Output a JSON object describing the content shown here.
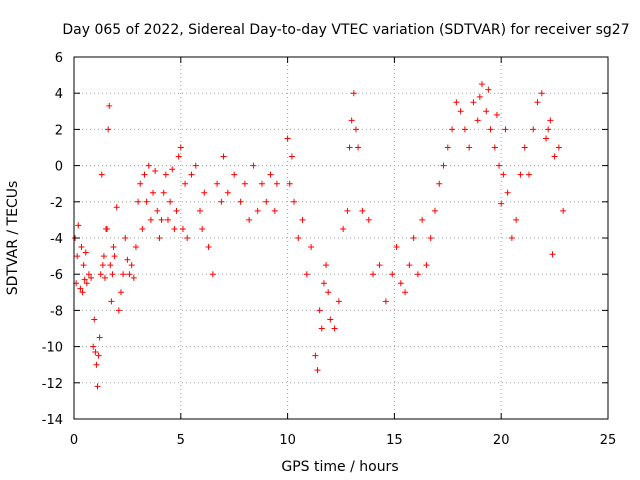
{
  "chart_data": {
    "type": "scatter",
    "title": "Day 065 of 2022, Sidereal Day-to-day VTEC variation (SDTVAR) for receiver sg27",
    "xlabel": "GPS time / hours",
    "ylabel": "SDTVAR / TECUs",
    "xlim": [
      0,
      25
    ],
    "ylim": [
      -14,
      6
    ],
    "xticks": [
      0,
      5,
      10,
      15,
      20,
      25
    ],
    "xtick_labels": [
      "0",
      "5",
      "10",
      "15",
      "20",
      "25"
    ],
    "yticks": [
      -14,
      -12,
      -10,
      -8,
      -6,
      -4,
      -2,
      0,
      2,
      4,
      6
    ],
    "ytick_labels": [
      "-14",
      "-12",
      "-10",
      "-8",
      "-6",
      "-4",
      "-2",
      "0",
      "2",
      "4",
      "6"
    ],
    "grid": true,
    "marker": "+",
    "series": [
      {
        "name": "SDTVAR",
        "color": "#ff0000",
        "x": [
          0.05,
          0.1,
          0.15,
          0.2,
          0.3,
          0.35,
          0.4,
          0.45,
          0.5,
          0.55,
          0.6,
          0.7,
          0.8,
          0.9,
          0.95,
          1.0,
          1.05,
          1.1,
          1.15,
          1.2,
          1.25,
          1.3,
          1.35,
          1.4,
          1.45,
          1.5,
          1.55,
          1.6,
          1.65,
          1.7,
          1.75,
          1.8,
          1.85,
          1.9,
          2.0,
          2.1,
          2.2,
          2.3,
          2.4,
          2.5,
          2.6,
          2.7,
          2.8,
          2.9,
          3.0,
          3.1,
          3.2,
          3.3,
          3.4,
          3.5,
          3.6,
          3.7,
          3.8,
          3.9,
          4.0,
          4.1,
          4.2,
          4.3,
          4.4,
          4.5,
          4.6,
          4.7,
          4.8,
          4.9,
          5.0,
          5.1,
          5.2,
          5.3,
          5.5,
          5.7,
          5.9,
          6.0,
          6.1,
          6.3,
          6.5,
          6.7,
          6.9,
          7.0,
          7.2,
          7.5,
          7.8,
          8.0,
          8.2,
          8.4,
          8.6,
          8.8,
          9.0,
          9.2,
          9.4,
          9.5,
          10.0,
          10.1,
          10.2,
          10.3,
          10.5,
          10.7,
          10.9,
          11.1,
          11.3,
          11.4,
          11.5,
          11.6,
          11.7,
          11.8,
          11.9,
          12.0,
          12.2,
          12.4,
          12.6,
          12.8,
          12.9,
          13.0,
          13.1,
          13.2,
          13.3,
          13.5,
          13.8,
          14.0,
          14.3,
          14.6,
          14.9,
          15.1,
          15.3,
          15.5,
          15.7,
          15.9,
          16.1,
          16.3,
          16.5,
          16.7,
          16.9,
          17.1,
          17.3,
          17.5,
          17.7,
          17.9,
          18.1,
          18.3,
          18.5,
          18.7,
          18.9,
          19.1,
          19.3,
          19.5,
          19.7,
          19.9,
          20.1,
          20.3,
          20.5,
          20.7,
          20.9,
          21.1,
          21.3,
          21.5,
          21.7,
          21.9,
          22.1,
          22.3,
          22.5,
          22.7,
          22.9,
          19.0,
          19.4,
          19.8,
          20.0,
          22.2,
          22.4,
          20.2
        ],
        "y": [
          -4.0,
          -6.5,
          -5.0,
          -3.3,
          -6.8,
          -4.5,
          -7.0,
          -5.5,
          -6.3,
          -4.8,
          -6.5,
          -6.0,
          -6.2,
          -10.0,
          -8.5,
          -10.3,
          -11.0,
          -12.2,
          -10.5,
          -9.5,
          -6.0,
          -0.5,
          -5.5,
          -5.0,
          -6.2,
          -3.5,
          -3.5,
          2.0,
          3.3,
          -5.5,
          -7.5,
          -6.0,
          -4.5,
          -5.0,
          -2.3,
          -8.0,
          -7.0,
          -6.0,
          -4.0,
          -5.2,
          -6.0,
          -5.5,
          -6.2,
          -4.5,
          -2.0,
          -1.0,
          -3.5,
          -0.5,
          -2.0,
          0.0,
          -3.0,
          -1.5,
          -0.3,
          -2.5,
          -4.0,
          -3.0,
          -1.5,
          -0.5,
          -3.0,
          -2.0,
          -0.2,
          -3.5,
          -2.5,
          0.5,
          1.0,
          -3.5,
          -1.0,
          -4.0,
          -0.5,
          0.0,
          -2.5,
          -3.5,
          -1.5,
          -4.5,
          -6.0,
          -1.0,
          -2.0,
          0.5,
          -1.5,
          -0.5,
          -2.0,
          -1.0,
          -3.0,
          0.0,
          -2.5,
          -1.0,
          -2.0,
          -0.5,
          -2.5,
          -1.0,
          1.5,
          -1.0,
          0.5,
          -2.0,
          -4.0,
          -3.0,
          -6.0,
          -4.5,
          -10.5,
          -11.3,
          -8.0,
          -9.0,
          -6.5,
          -5.5,
          -7.0,
          -8.5,
          -9.0,
          -7.5,
          -3.5,
          -2.5,
          1.0,
          2.5,
          4.0,
          2.0,
          1.0,
          -2.5,
          -3.0,
          -6.0,
          -5.5,
          -7.5,
          -6.0,
          -4.5,
          -6.5,
          -7.0,
          -5.5,
          -4.0,
          -6.0,
          -3.0,
          -5.5,
          -4.0,
          -2.5,
          -1.0,
          0.0,
          1.0,
          2.0,
          3.5,
          3.0,
          2.0,
          1.0,
          3.5,
          2.5,
          4.5,
          3.0,
          2.0,
          1.0,
          0.0,
          -0.5,
          -1.5,
          -4.0,
          -3.0,
          -0.5,
          1.0,
          -0.5,
          2.0,
          3.5,
          4.0,
          1.5,
          2.5,
          0.5,
          1.0,
          -2.5,
          3.8,
          4.2,
          2.8,
          -2.1,
          2.0,
          -4.9,
          2.0
        ]
      }
    ]
  }
}
